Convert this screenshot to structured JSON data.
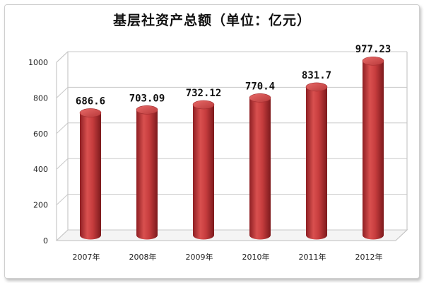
{
  "chart_data": {
    "type": "bar",
    "title": "基层社资产总额（单位：亿元）",
    "categories": [
      "2007年",
      "2008年",
      "2009年",
      "2010年",
      "2011年",
      "2012年"
    ],
    "values": [
      686.6,
      703.09,
      732.12,
      770.4,
      831.7,
      977.23
    ],
    "value_labels": [
      "686.6",
      "703.09",
      "732.12",
      "770.4",
      "831.7",
      "977.23"
    ],
    "ylim": [
      0,
      1000
    ],
    "yticks": [
      0,
      200,
      400,
      600,
      800,
      1000
    ],
    "grid": true,
    "bar_color": "#c0393b",
    "legend": "none"
  }
}
